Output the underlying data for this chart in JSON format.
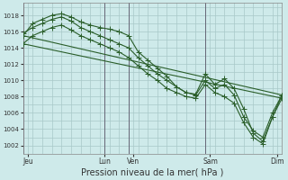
{
  "bg_color": "#ceeaea",
  "grid_color": "#a8c8c8",
  "line_color": "#2a5e2a",
  "marker_color": "#2a5e2a",
  "xlabel": "Pression niveau de la mer( hPa )",
  "xlabel_fontsize": 7,
  "ytick_fontsize": 5,
  "xtick_fontsize": 5.5,
  "ylim": [
    1001.0,
    1019.5
  ],
  "xlim": [
    0,
    27
  ],
  "yticks": [
    1002,
    1004,
    1006,
    1008,
    1010,
    1012,
    1014,
    1016,
    1018
  ],
  "day_lines_x": [
    0,
    8.5,
    11,
    19,
    27
  ],
  "xtick_labels": [
    "Jeu",
    "Lun",
    "Ven",
    "Sam",
    "Dim"
  ],
  "xtick_pos": [
    0.5,
    8.5,
    11.5,
    19.5,
    26.5
  ],
  "vline_color": "#666677",
  "series1": {
    "x": [
      0,
      1,
      2,
      3,
      4,
      5,
      6,
      7,
      8,
      9,
      10,
      11,
      12,
      13,
      14,
      15,
      16,
      17,
      18,
      19,
      20,
      21,
      22,
      23,
      24,
      25,
      26,
      27
    ],
    "y": [
      1015.5,
      1017.0,
      1017.5,
      1018.0,
      1018.2,
      1017.8,
      1017.2,
      1016.8,
      1016.5,
      1016.3,
      1016.0,
      1015.5,
      1013.5,
      1012.5,
      1011.5,
      1010.5,
      1009.2,
      1008.5,
      1008.3,
      1010.8,
      1009.5,
      1010.2,
      1009.0,
      1006.5,
      1003.5,
      1002.5,
      1005.5,
      1008.2
    ]
  },
  "series2": {
    "x": [
      0,
      1,
      2,
      3,
      4,
      5,
      6,
      7,
      8,
      9,
      10,
      11,
      12,
      13,
      14,
      15,
      16,
      17,
      18,
      19,
      20,
      21,
      22,
      23,
      24,
      25,
      26,
      27
    ],
    "y": [
      1015.8,
      1016.5,
      1017.0,
      1017.5,
      1017.8,
      1017.3,
      1016.5,
      1016.0,
      1015.5,
      1015.0,
      1014.5,
      1014.0,
      1012.8,
      1011.8,
      1010.8,
      1010.0,
      1009.2,
      1008.5,
      1008.2,
      1010.0,
      1009.0,
      1009.5,
      1008.2,
      1005.5,
      1003.8,
      1003.0,
      1006.0,
      1008.2
    ]
  },
  "series3": {
    "x": [
      0,
      1,
      2,
      3,
      4,
      5,
      6,
      7,
      8,
      9,
      10,
      11,
      12,
      13,
      14,
      15,
      16,
      17,
      18,
      19,
      20,
      21,
      22,
      23,
      24,
      25,
      26,
      27
    ],
    "y": [
      1014.5,
      1015.5,
      1016.0,
      1016.5,
      1016.8,
      1016.2,
      1015.5,
      1015.0,
      1014.5,
      1014.0,
      1013.5,
      1012.8,
      1011.8,
      1010.8,
      1010.0,
      1009.0,
      1008.5,
      1008.0,
      1007.8,
      1009.5,
      1008.5,
      1008.0,
      1007.2,
      1004.8,
      1003.0,
      1002.2,
      1005.5,
      1007.8
    ]
  },
  "trend1": {
    "x": [
      0,
      27
    ],
    "y": [
      1015.5,
      1008.2
    ]
  },
  "trend2": {
    "x": [
      0,
      27
    ],
    "y": [
      1014.5,
      1007.8
    ]
  }
}
